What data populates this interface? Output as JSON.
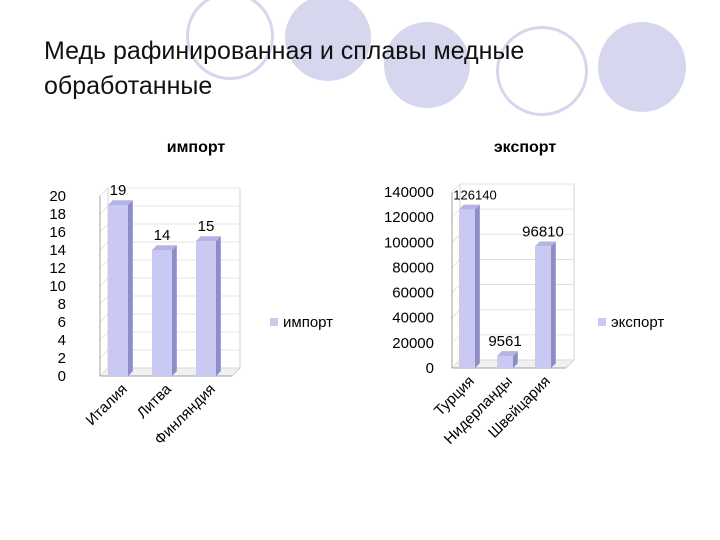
{
  "slide": {
    "title": "Медь рафинированная и сплавы медные обработанные",
    "accent_color": "#d6d6ee",
    "bar_color": "#c9c9f3",
    "bar_side_color": "#8e8ec4"
  },
  "chart_data": [
    {
      "type": "bar",
      "title": "импорт",
      "categories": [
        "Италия",
        "Литва",
        "Финляндия"
      ],
      "series": [
        {
          "name": "импорт",
          "values": [
            19,
            14,
            15
          ]
        }
      ],
      "data_labels": [
        "19",
        "14",
        "15"
      ],
      "ylim": [
        0,
        20
      ],
      "yticks": [
        "0",
        "2",
        "4",
        "6",
        "8",
        "10",
        "12",
        "14",
        "16",
        "18",
        "20"
      ],
      "legend_position": "right",
      "grid": true
    },
    {
      "type": "bar",
      "title": "экспорт",
      "categories": [
        "Турция",
        "Нидерланды",
        "Швейцария"
      ],
      "series": [
        {
          "name": "экспорт",
          "values": [
            126140,
            9561,
            96810
          ]
        }
      ],
      "data_labels": [
        "126140",
        "9561",
        "96810"
      ],
      "ylim": [
        0,
        140000
      ],
      "yticks": [
        "0",
        "20000",
        "40000",
        "60000",
        "80000",
        "100000",
        "120000",
        "140000"
      ],
      "legend_position": "right",
      "grid": true
    }
  ]
}
